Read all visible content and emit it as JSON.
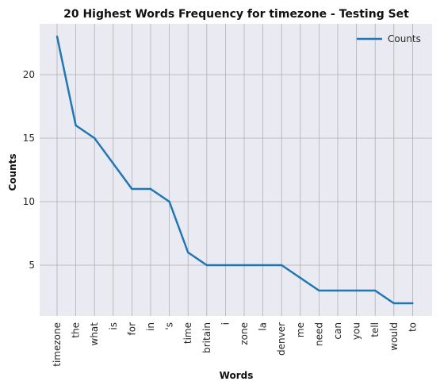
{
  "chart_data": {
    "type": "line",
    "title": "20 Highest Words Frequency for timezone - Testing Set",
    "xlabel": "Words",
    "ylabel": "Counts",
    "categories": [
      "timezone",
      "the",
      "what",
      "is",
      "for",
      "in",
      "'s",
      "time",
      "britain",
      "i",
      "zone",
      "la",
      "denver",
      "me",
      "need",
      "can",
      "you",
      "tell",
      "would",
      "to"
    ],
    "series": [
      {
        "name": "Counts",
        "values": [
          23,
          16,
          15,
          13,
          11,
          11,
          10,
          6,
          5,
          5,
          5,
          5,
          5,
          4,
          3,
          3,
          3,
          3,
          2,
          2
        ]
      }
    ],
    "yticks": [
      5,
      10,
      15,
      20
    ],
    "ylim": [
      1.0,
      24.0
    ],
    "grid": true,
    "legend_position": "top-right",
    "colors": {
      "line": "#1f77b4",
      "plot_bg": "#eaeaf2",
      "grid": "#b0b0b0"
    }
  }
}
